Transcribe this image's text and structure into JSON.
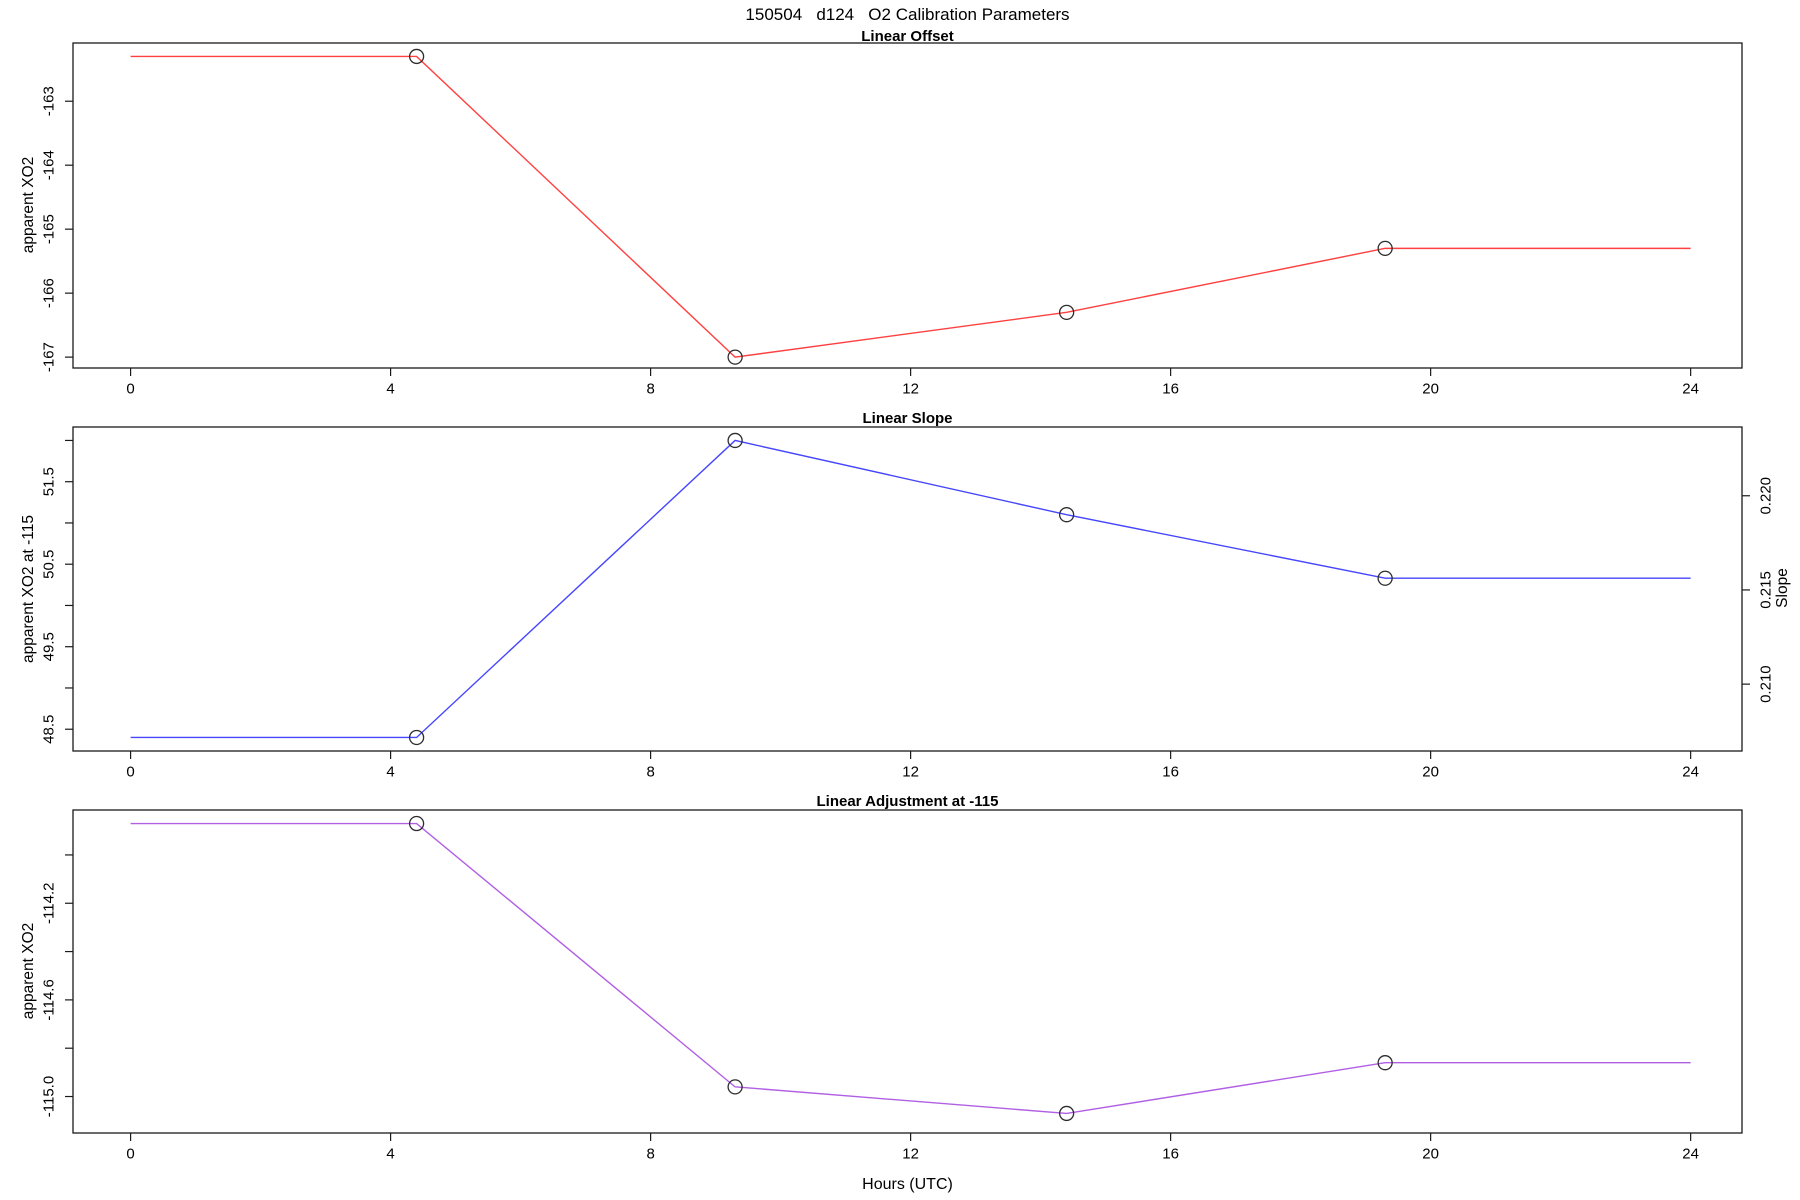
{
  "page_title": "150504   d124   O2 Calibration Parameters",
  "x_axis": {
    "label": "Hours (UTC)",
    "xlim": [
      -0.886,
      24.79
    ],
    "ticks": [
      {
        "v": 0,
        "label": "0"
      },
      {
        "v": 4,
        "label": "4"
      },
      {
        "v": 8,
        "label": "8"
      },
      {
        "v": 12,
        "label": "12"
      },
      {
        "v": 16,
        "label": "16"
      },
      {
        "v": 20,
        "label": "20"
      },
      {
        "v": 24,
        "label": "24"
      }
    ]
  },
  "colors": {
    "offset_line": "#ff4040",
    "slope_line": "#4646ff",
    "adjustment_line": "#b160e4",
    "marker_stroke": "#2d2d2d",
    "axis_stroke": "#1a1a1a"
  },
  "chart_data": [
    {
      "id": "linear-offset",
      "type": "line",
      "title": "Linear Offset",
      "ylabel": "apparent XO2",
      "x": [
        0,
        4.4,
        9.3,
        14.4,
        19.3,
        24
      ],
      "values": [
        -162.3,
        -162.3,
        -167.0,
        -166.3,
        -165.3,
        -165.3
      ],
      "marker_x": [
        4.4,
        9.3,
        14.4,
        19.3
      ],
      "ylim": [
        -167.17,
        -162.09
      ],
      "yticks": [
        {
          "v": -163,
          "label": "-163"
        },
        {
          "v": -164,
          "label": "-164"
        },
        {
          "v": -165,
          "label": "-165"
        },
        {
          "v": -166,
          "label": "-166"
        },
        {
          "v": -167,
          "label": "-167"
        }
      ],
      "color": "#ff4040"
    },
    {
      "id": "linear-slope",
      "type": "line",
      "title": "Linear Slope",
      "ylabel": "apparent XO2 at -115",
      "ylabel_right": "Slope",
      "x": [
        0,
        4.4,
        9.3,
        14.4,
        19.3,
        24
      ],
      "values": [
        48.4,
        48.4,
        52.0,
        51.1,
        50.33,
        50.33
      ],
      "values_right_axis_slope": [
        0.207,
        0.207,
        0.223,
        0.219,
        0.2156,
        0.2156
      ],
      "marker_x": [
        4.4,
        9.3,
        14.4,
        19.3
      ],
      "ylim": [
        48.236,
        52.163
      ],
      "ylim_right": [
        0.20645,
        0.22365
      ],
      "yticks": [
        {
          "v": 52.0,
          "label": null
        },
        {
          "v": 51.5,
          "label": "51.5"
        },
        {
          "v": 51.0,
          "label": null
        },
        {
          "v": 50.5,
          "label": "50.5"
        },
        {
          "v": 50.0,
          "label": null
        },
        {
          "v": 49.5,
          "label": "49.5"
        },
        {
          "v": 49.0,
          "label": null
        },
        {
          "v": 48.5,
          "label": "48.5"
        }
      ],
      "yticks_right": [
        {
          "v": 0.22,
          "label": "0.220"
        },
        {
          "v": 0.215,
          "label": "0.215"
        },
        {
          "v": 0.21,
          "label": "0.210"
        }
      ],
      "color": "#4646ff"
    },
    {
      "id": "linear-adjustment",
      "type": "line",
      "title": "Linear Adjustment at -115",
      "ylabel": "apparent XO2",
      "xlabel": "Hours (UTC)",
      "x": [
        0,
        4.4,
        9.3,
        14.4,
        19.3,
        24
      ],
      "values": [
        -113.87,
        -113.87,
        -114.96,
        -115.07,
        -114.86,
        -114.86
      ],
      "marker_x": [
        4.4,
        9.3,
        14.4,
        19.3
      ],
      "ylim": [
        -115.151,
        -113.814
      ],
      "yticks": [
        {
          "v": -114.0,
          "label": null
        },
        {
          "v": -114.2,
          "label": "-114.2"
        },
        {
          "v": -114.4,
          "label": null
        },
        {
          "v": -114.6,
          "label": "-114.6"
        },
        {
          "v": -114.8,
          "label": null
        },
        {
          "v": -115.0,
          "label": "-115.0"
        }
      ],
      "color": "#b160e4"
    }
  ]
}
